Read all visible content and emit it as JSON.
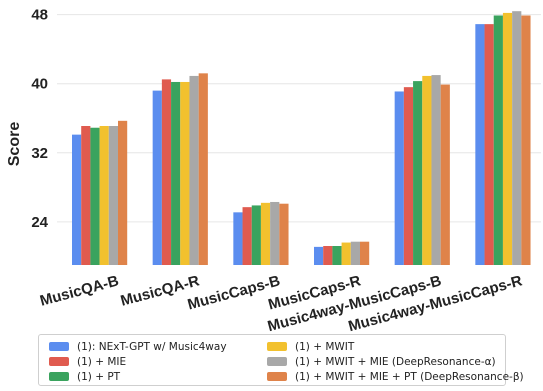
{
  "chart_data": {
    "type": "bar",
    "ylabel": "Score",
    "ylim": [
      19,
      49
    ],
    "yticks": [
      24,
      32,
      40,
      48
    ],
    "categories": [
      "MusicQA-B",
      "MusicQA-R",
      "MusicCaps-B",
      "MusicCaps-R",
      "Music4way-MusicCaps-B",
      "Music4way-MusicCaps-R"
    ],
    "series": [
      {
        "name": "(1): NExT-GPT w/ Music4way",
        "color": "#5b8def",
        "values": [
          34.1,
          39.2,
          25.1,
          21.1,
          39.1,
          46.9
        ]
      },
      {
        "name": "(1) + MIE",
        "color": "#e05b4f",
        "values": [
          35.1,
          40.5,
          25.7,
          21.2,
          39.6,
          46.9
        ]
      },
      {
        "name": "(1) + PT",
        "color": "#3aa35e",
        "values": [
          34.9,
          40.2,
          25.9,
          21.2,
          40.3,
          47.9
        ]
      },
      {
        "name": "(1) + MWIT",
        "color": "#f2c12e",
        "values": [
          35.1,
          40.2,
          26.2,
          21.6,
          40.9,
          48.2
        ]
      },
      {
        "name": "(1) + MWIT + MIE (DeepResonance-α)",
        "color": "#a8a8a8",
        "values": [
          35.1,
          40.9,
          26.3,
          21.7,
          41.0,
          48.4
        ]
      },
      {
        "name": "(1) + MWIT + MIE + PT (DeepResonance-β)",
        "color": "#df834a",
        "values": [
          35.7,
          41.2,
          26.1,
          21.7,
          39.9,
          47.9
        ]
      }
    ],
    "grid": true,
    "legend_position": "bottom"
  }
}
